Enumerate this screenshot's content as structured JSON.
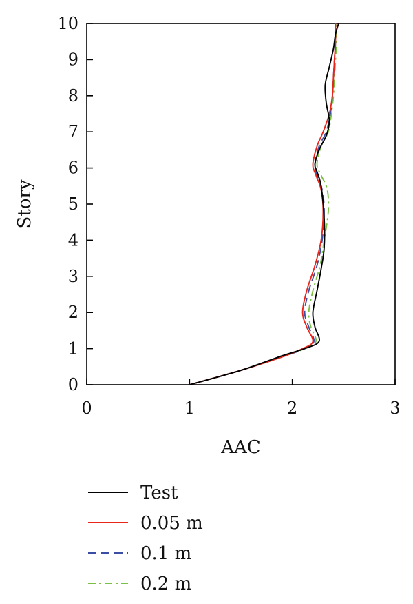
{
  "chart_data": {
    "type": "line",
    "title": "",
    "xlabel": "AAC",
    "ylabel": "Story",
    "xlim": [
      0,
      3
    ],
    "ylim": [
      0,
      10
    ],
    "xticks": [
      0,
      1,
      2,
      3
    ],
    "yticks": [
      0,
      1,
      2,
      3,
      4,
      5,
      6,
      7,
      8,
      9,
      10
    ],
    "grid": false,
    "legend_position": "bottom",
    "series": [
      {
        "name": "Test",
        "color": "#000000",
        "dash": "solid",
        "x": [
          1.0,
          1.5,
          1.9,
          2.12,
          2.26,
          2.22,
          2.2,
          2.24,
          2.28,
          2.31,
          2.31,
          2.28,
          2.24,
          2.22,
          2.26,
          2.33,
          2.36,
          2.33,
          2.32,
          2.36,
          2.4,
          2.42,
          2.45
        ],
        "y": [
          0,
          0.4,
          0.8,
          1.0,
          1.2,
          1.6,
          2.0,
          2.6,
          3.2,
          3.8,
          4.6,
          5.5,
          5.9,
          6.1,
          6.5,
          6.9,
          7.3,
          7.8,
          8.3,
          8.8,
          9.3,
          9.7,
          10.0
        ]
      },
      {
        "name": "0.05 m",
        "color": "#e8261b",
        "dash": "solid",
        "x": [
          1.0,
          1.5,
          1.88,
          2.1,
          2.2,
          2.14,
          2.1,
          2.14,
          2.22,
          2.28,
          2.3,
          2.28,
          2.23,
          2.2,
          2.24,
          2.3,
          2.36,
          2.39,
          2.4,
          2.41,
          2.42,
          2.42
        ],
        "y": [
          0,
          0.4,
          0.75,
          1.0,
          1.2,
          1.6,
          2.0,
          2.6,
          3.3,
          4.0,
          4.8,
          5.4,
          5.8,
          6.1,
          6.6,
          7.0,
          7.5,
          8.0,
          8.5,
          9.0,
          9.5,
          10.0
        ]
      },
      {
        "name": "0.1 m",
        "color": "#3a4fa3",
        "dash": "dashed",
        "x": [
          1.0,
          1.5,
          1.88,
          2.12,
          2.21,
          2.16,
          2.12,
          2.16,
          2.24,
          2.29,
          2.31,
          2.29,
          2.24,
          2.22,
          2.26,
          2.33,
          2.37,
          2.39,
          2.4,
          2.41,
          2.42,
          2.42
        ],
        "y": [
          0,
          0.4,
          0.75,
          1.0,
          1.2,
          1.6,
          2.0,
          2.6,
          3.3,
          4.0,
          4.8,
          5.4,
          5.8,
          6.1,
          6.6,
          7.0,
          7.5,
          8.0,
          8.5,
          9.0,
          9.5,
          10.0
        ]
      },
      {
        "name": "0.2 m",
        "color": "#7bbf44",
        "dash": "dashdot",
        "x": [
          1.0,
          1.5,
          1.88,
          2.12,
          2.23,
          2.18,
          2.16,
          2.2,
          2.27,
          2.31,
          2.35,
          2.34,
          2.28,
          2.24,
          2.28,
          2.35,
          2.38,
          2.4,
          2.41,
          2.42,
          2.43,
          2.43
        ],
        "y": [
          0,
          0.4,
          0.75,
          1.0,
          1.2,
          1.6,
          2.0,
          2.6,
          3.3,
          4.0,
          4.8,
          5.4,
          5.8,
          6.1,
          6.6,
          7.0,
          7.5,
          8.0,
          8.5,
          9.0,
          9.5,
          10.0
        ]
      }
    ]
  }
}
